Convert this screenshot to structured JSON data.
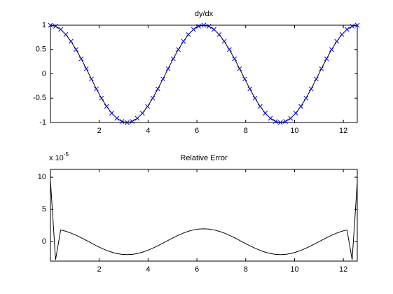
{
  "chart_data": [
    {
      "type": "line",
      "title": "dy/dx",
      "x": [
        0,
        0.21,
        0.42,
        0.63,
        0.84,
        1.05,
        1.26,
        1.47,
        1.68,
        1.88,
        2.09,
        2.3,
        2.51,
        2.72,
        2.93,
        3.14,
        3.35,
        3.56,
        3.77,
        3.98,
        4.19,
        4.4,
        4.61,
        4.82,
        5.03,
        5.24,
        5.45,
        5.65,
        5.86,
        6.07,
        6.28,
        6.49,
        6.7,
        6.91,
        7.12,
        7.33,
        7.54,
        7.75,
        7.96,
        8.17,
        8.38,
        8.59,
        8.8,
        9.01,
        9.22,
        9.42,
        9.63,
        9.84,
        10.05,
        10.26,
        10.47,
        10.68,
        10.89,
        11.1,
        11.31,
        11.52,
        11.73,
        11.94,
        12.15,
        12.36,
        12.57
      ],
      "series": [
        {
          "color": "#000000",
          "values": [
            1,
            0.978,
            0.914,
            0.809,
            0.669,
            0.5,
            0.309,
            0.105,
            -0.105,
            -0.309,
            -0.5,
            -0.669,
            -0.809,
            -0.914,
            -0.978,
            -1,
            -0.978,
            -0.914,
            -0.809,
            -0.669,
            -0.5,
            -0.309,
            -0.105,
            0.105,
            0.309,
            0.5,
            0.669,
            0.809,
            0.914,
            0.978,
            1,
            0.978,
            0.914,
            0.809,
            0.669,
            0.5,
            0.309,
            0.105,
            -0.105,
            -0.309,
            -0.5,
            -0.669,
            -0.809,
            -0.914,
            -0.978,
            -1,
            -0.978,
            -0.914,
            -0.809,
            -0.669,
            -0.5,
            -0.309,
            -0.105,
            0.105,
            0.309,
            0.5,
            0.669,
            0.809,
            0.914,
            0.978,
            1
          ]
        },
        {
          "color": "#0000ff",
          "marker": "x",
          "values": [
            1,
            0.978,
            0.914,
            0.809,
            0.669,
            0.5,
            0.309,
            0.105,
            -0.105,
            -0.309,
            -0.5,
            -0.669,
            -0.809,
            -0.914,
            -0.978,
            -1,
            -0.978,
            -0.914,
            -0.809,
            -0.669,
            -0.5,
            -0.309,
            -0.105,
            0.105,
            0.309,
            0.5,
            0.669,
            0.809,
            0.914,
            0.978,
            1,
            0.978,
            0.914,
            0.809,
            0.669,
            0.5,
            0.309,
            0.105,
            -0.105,
            -0.309,
            -0.5,
            -0.669,
            -0.809,
            -0.914,
            -0.978,
            -1,
            -0.978,
            -0.914,
            -0.809,
            -0.669,
            -0.5,
            -0.309,
            -0.105,
            0.105,
            0.309,
            0.5,
            0.669,
            0.809,
            0.914,
            0.978,
            1
          ]
        }
      ],
      "xlim": [
        0,
        12.57
      ],
      "xticks": [
        2,
        4,
        6,
        8,
        10,
        12
      ],
      "ylim": [
        -1,
        1
      ],
      "yticks": [
        -1,
        -0.5,
        0,
        0.5,
        1
      ]
    },
    {
      "type": "line",
      "title": "Relative Error",
      "y_multiplier": {
        "base": "x 10",
        "exponent": "-5"
      },
      "x": [
        0,
        0.21,
        0.42,
        0.63,
        0.84,
        1.05,
        1.26,
        1.47,
        1.68,
        1.88,
        2.09,
        2.3,
        2.51,
        2.72,
        2.93,
        3.14,
        3.35,
        3.56,
        3.77,
        3.98,
        4.19,
        4.4,
        4.61,
        4.82,
        5.03,
        5.24,
        5.45,
        5.65,
        5.86,
        6.07,
        6.28,
        6.49,
        6.7,
        6.91,
        7.12,
        7.33,
        7.54,
        7.75,
        7.96,
        8.17,
        8.38,
        8.59,
        8.8,
        9.01,
        9.22,
        9.42,
        9.63,
        9.84,
        10.05,
        10.26,
        10.47,
        10.68,
        10.89,
        11.1,
        11.31,
        11.52,
        11.73,
        11.94,
        12.15,
        12.36,
        12.57
      ],
      "series": [
        {
          "color": "#000000",
          "values": [
            9.5,
            -2.8,
            1.83,
            1.62,
            1.34,
            1.0,
            0.62,
            0.21,
            -0.21,
            -0.62,
            -1.0,
            -1.34,
            -1.62,
            -1.83,
            -1.96,
            -2,
            -1.96,
            -1.83,
            -1.62,
            -1.34,
            -1.0,
            -0.62,
            -0.21,
            0.21,
            0.62,
            1.0,
            1.34,
            1.62,
            1.83,
            1.96,
            2,
            1.96,
            1.83,
            1.62,
            1.34,
            1.0,
            0.62,
            0.21,
            -0.21,
            -0.62,
            -1.0,
            -1.34,
            -1.62,
            -1.83,
            -1.96,
            -2,
            -1.96,
            -1.83,
            -1.62,
            -1.34,
            -1.0,
            -0.62,
            -0.21,
            0.21,
            0.62,
            1.0,
            1.34,
            1.62,
            1.83,
            -2.8,
            9.2
          ]
        }
      ],
      "xlim": [
        0,
        12.57
      ],
      "xticks": [
        2,
        4,
        6,
        8,
        10,
        12
      ],
      "ylim": [
        -3,
        11.2
      ],
      "yticks": [
        0,
        5,
        10
      ]
    }
  ]
}
